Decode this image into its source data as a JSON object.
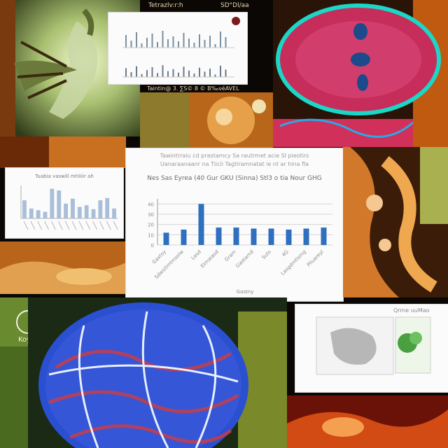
{
  "collage": {
    "top_caption_left": "Tetrazlv:r:h",
    "top_caption_right": "SD°Dl/aa",
    "mid_caption": "Taintin@ 3. ∑S© 8 © B‰νéAVEL",
    "logo_text": "Koy",
    "main_header_line1": "Tawintrraiu cd prastamcy Sa rautrmet acie SI pieotirs",
    "main_header_line2": "Uanaraanaanr na Tiicii Tagtiramnatat ie nt ar hina fla",
    "small_chart_title": "Tuabia vaswill mhliiir ah",
    "doc_header": "Qrme  uuMao",
    "colors": {
      "bar": "#2f6fbf",
      "grid": "#d6d6d6",
      "card": "#fbfbfb",
      "background": "#0b0705"
    }
  },
  "chart_data": [
    {
      "type": "bar",
      "title": "Nes Sas Eyrea (40 Gur GKU (Sinna) Stl3 o tia Nour GHG",
      "xlabel": "Gastny",
      "ylabel": "",
      "categories": [
        "Gaxtsy",
        "Sdwsitmtmsolw",
        "Lesd",
        "Etmaiasd",
        "Gram",
        "Gaotamd",
        "Suts",
        "4G",
        "Lasgdmtlsmg",
        "Piluareyl"
      ],
      "values": [
        12,
        15,
        40,
        17,
        17,
        16,
        16,
        15,
        16,
        17
      ],
      "ylim": [
        0,
        45
      ],
      "yticks": [
        0,
        10,
        20,
        30,
        40
      ],
      "ytick_labels": [
        "0",
        "10",
        "20",
        "30",
        "40"
      ]
    },
    {
      "type": "bar",
      "title": "Tuabia vaswill mhliiir ah",
      "categories": [
        "a",
        "b",
        "c",
        "d",
        "e",
        "f",
        "g",
        "h",
        "i",
        "j",
        "k",
        "l",
        "m",
        "n"
      ],
      "values": [
        55,
        30,
        25,
        20,
        90,
        85,
        45,
        60,
        35,
        40,
        28,
        55,
        62,
        30
      ],
      "ylim": [
        0,
        100
      ]
    }
  ]
}
